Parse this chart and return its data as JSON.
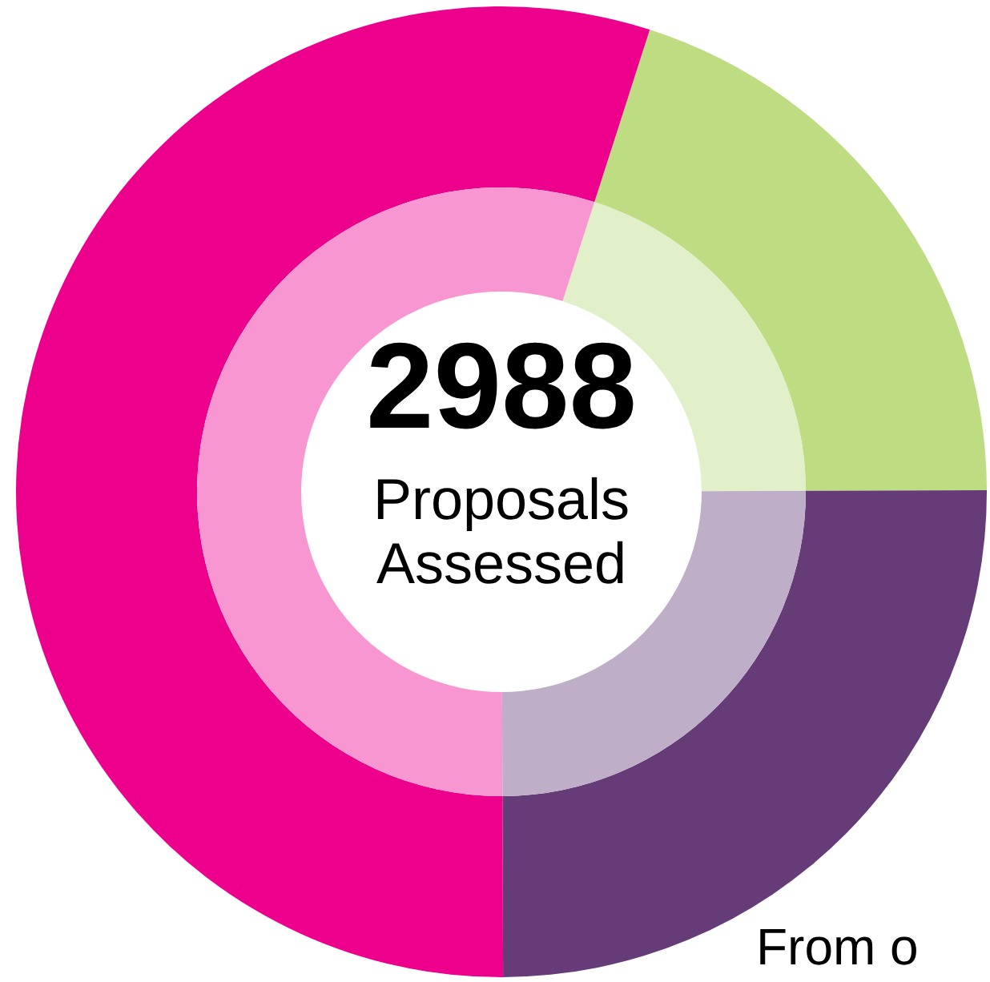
{
  "chart_data": {
    "type": "donut",
    "categories": [
      null,
      null,
      null
    ],
    "values": [
      20,
      25,
      55
    ],
    "colors": [
      "#e1f0c8",
      "#bfaec8",
      "#f796d0"
    ],
    "series": [
      {
        "values": [
          20,
          25,
          55
        ],
        "colors": [
          "#bedc82",
          "#663c78",
          "#ec008c"
        ]
      }
    ],
    "annotations": [
      "2988",
      "Proposals Assessed",
      "From o"
    ]
  }
}
